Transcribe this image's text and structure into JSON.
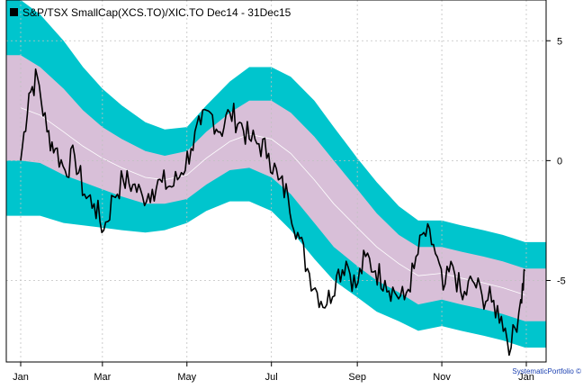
{
  "chart_data": {
    "type": "line",
    "title": "",
    "legend": {
      "label": "S&P/TSX SmallCap(XCS.TO)/XIC.TO Dec14 - 31Dec15",
      "placement": "top-left",
      "marker_color": "#000000"
    },
    "credit": "SystematicPortfolio ©",
    "x_axis": {
      "range": [
        "2015-01-01",
        "2016-01-01"
      ],
      "ticks": [
        {
          "date": "2015-01-01",
          "label": "Jan"
        },
        {
          "date": "2015-03-01",
          "label": "Mar"
        },
        {
          "date": "2015-05-01",
          "label": "May"
        },
        {
          "date": "2015-07-01",
          "label": "Jul"
        },
        {
          "date": "2015-09-01",
          "label": "Sep"
        },
        {
          "date": "2015-11-01",
          "label": "Nov"
        },
        {
          "date": "2016-01-01",
          "label": "Jan"
        }
      ]
    },
    "y_axis": {
      "range": [
        -8.4,
        6.7
      ],
      "position": "right",
      "ticks": [
        {
          "value": 5,
          "label": "5"
        },
        {
          "value": 0,
          "label": "0"
        },
        {
          "value": -5,
          "label": "-5"
        }
      ]
    },
    "grid": true,
    "colors": {
      "outer_band": "#00c5cd",
      "inner_band": "#d8bfd8",
      "mean_line": "#ffffff",
      "series": "#000000",
      "grid": "#c0c0c0"
    },
    "band_keypoints": {
      "dates": [
        "2015-01-01",
        "2015-01-15",
        "2015-02-01",
        "2015-02-15",
        "2015-03-01",
        "2015-03-15",
        "2015-04-01",
        "2015-04-15",
        "2015-05-01",
        "2015-05-15",
        "2015-06-01",
        "2015-06-15",
        "2015-07-01",
        "2015-07-15",
        "2015-08-01",
        "2015-08-15",
        "2015-09-01",
        "2015-09-15",
        "2015-10-01",
        "2015-10-15",
        "2015-11-01",
        "2015-11-15",
        "2015-12-01",
        "2015-12-15",
        "2015-12-31"
      ],
      "mid": [
        2.2,
        1.9,
        1.2,
        0.6,
        0.1,
        -0.3,
        -0.7,
        -0.8,
        -0.6,
        0.1,
        0.8,
        1.1,
        0.9,
        0.3,
        -0.8,
        -1.8,
        -2.8,
        -3.6,
        -4.3,
        -4.8,
        -4.7,
        -4.9,
        -5.1,
        -5.3,
        -5.6
      ],
      "inner_hw": [
        2.2,
        2.0,
        1.8,
        1.5,
        1.3,
        1.2,
        1.1,
        1.0,
        1.0,
        1.1,
        1.2,
        1.4,
        1.6,
        1.7,
        1.8,
        1.8,
        1.6,
        1.4,
        1.2,
        1.2,
        1.1,
        1.1,
        1.1,
        1.1,
        1.1
      ],
      "outer_hw": [
        4.5,
        4.2,
        3.8,
        3.3,
        2.9,
        2.6,
        2.3,
        2.1,
        2.0,
        2.2,
        2.5,
        2.8,
        3.0,
        3.2,
        3.3,
        3.2,
        2.9,
        2.7,
        2.4,
        2.3,
        2.2,
        2.2,
        2.2,
        2.2,
        2.2
      ]
    },
    "series": [
      {
        "x": [
          "2015-01-01",
          "2015-01-07",
          "2015-01-13",
          "2015-01-20",
          "2015-01-26",
          "2015-02-02",
          "2015-02-09",
          "2015-02-16",
          "2015-02-23",
          "2015-03-02",
          "2015-03-09",
          "2015-03-16",
          "2015-03-23",
          "2015-03-30",
          "2015-04-06",
          "2015-04-13",
          "2015-04-20",
          "2015-04-27",
          "2015-05-04",
          "2015-05-11",
          "2015-05-18",
          "2015-05-25",
          "2015-06-01",
          "2015-06-08",
          "2015-06-15",
          "2015-06-22",
          "2015-06-29",
          "2015-07-06",
          "2015-07-13",
          "2015-07-20",
          "2015-07-27",
          "2015-08-03",
          "2015-08-10",
          "2015-08-17",
          "2015-08-24",
          "2015-08-31",
          "2015-09-07",
          "2015-09-14",
          "2015-09-21",
          "2015-09-28",
          "2015-10-05",
          "2015-10-12",
          "2015-10-19",
          "2015-10-26",
          "2015-11-02",
          "2015-11-09",
          "2015-11-16",
          "2015-11-23",
          "2015-11-30",
          "2015-12-07",
          "2015-12-14",
          "2015-12-21",
          "2015-12-28",
          "2015-12-31"
        ],
        "y": [
          0.0,
          2.8,
          3.5,
          1.2,
          0.5,
          -0.4,
          0.2,
          -1.4,
          -1.8,
          -2.9,
          -1.5,
          -0.8,
          -1.0,
          -1.5,
          -1.2,
          -0.9,
          -1.1,
          -0.5,
          0.5,
          1.5,
          2.0,
          1.2,
          2.0,
          1.6,
          0.9,
          0.7,
          0.3,
          -0.8,
          -1.5,
          -3.0,
          -4.5,
          -5.5,
          -6.0,
          -4.8,
          -4.2,
          -5.3,
          -4.0,
          -4.6,
          -5.0,
          -5.5,
          -5.8,
          -4.5,
          -3.0,
          -3.5,
          -5.4,
          -4.4,
          -5.8,
          -5.0,
          -5.6,
          -5.9,
          -6.5,
          -7.8,
          -5.8,
          -4.6
        ]
      }
    ]
  }
}
